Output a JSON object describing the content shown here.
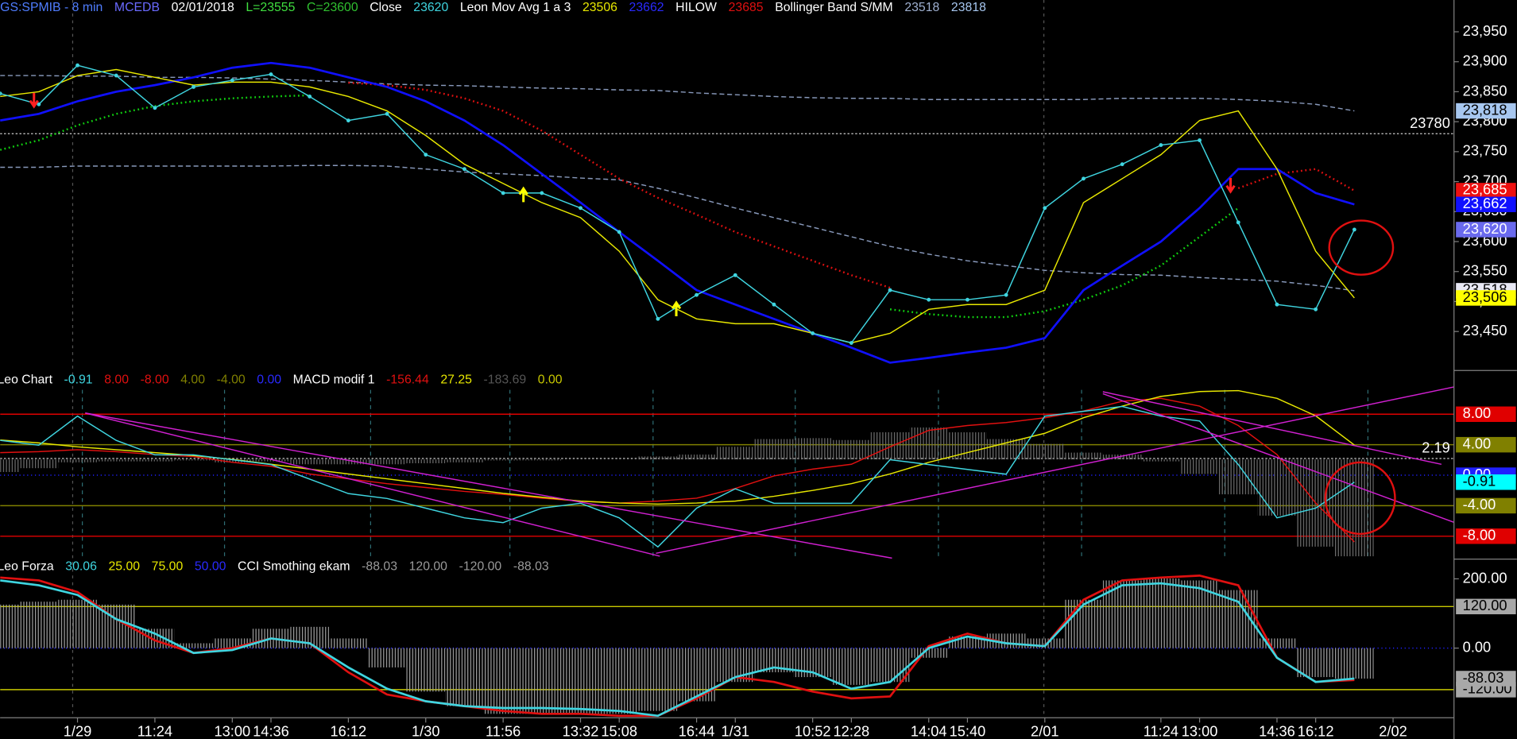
{
  "chart_data": [
    {
      "type": "line",
      "header": [
        {
          "text": "GS:SPMIB - 8 min",
          "color": "#4f7dff"
        },
        {
          "text": "MCEDB",
          "color": "#6a6aff"
        },
        {
          "text": "02/01/2018",
          "color": "#ffffff"
        },
        {
          "text": "L=23555",
          "color": "#40e040"
        },
        {
          "text": "C=23600",
          "color": "#30c030"
        },
        {
          "text": "Close",
          "color": "#ffffff"
        },
        {
          "text": "23620",
          "color": "#3fd5e0"
        },
        {
          "text": "Leon Mov Avg 1 a 3",
          "color": "#ffffff"
        },
        {
          "text": "23506",
          "color": "#e8e800"
        },
        {
          "text": "23662",
          "color": "#2a2aff"
        },
        {
          "text": "HILOW",
          "color": "#ffffff"
        },
        {
          "text": "23685",
          "color": "#e01010"
        },
        {
          "text": "Bollinger Band S/MM",
          "color": "#ffffff"
        },
        {
          "text": "23518",
          "color": "#9fb0d0"
        },
        {
          "text": "23818",
          "color": "#a7c7f0"
        }
      ],
      "ylim": [
        23385,
        24003
      ],
      "yticks": [
        {
          "value": 23450,
          "label": "23,450"
        },
        {
          "value": 23500,
          "label": "23,500"
        },
        {
          "value": 23550,
          "label": "23,550"
        },
        {
          "value": 23600,
          "label": "23,600"
        },
        {
          "value": 23650,
          "label": "23,650"
        },
        {
          "value": 23700,
          "label": "23,700"
        },
        {
          "value": 23750,
          "label": "23,750"
        },
        {
          "value": 23800,
          "label": "23,800"
        },
        {
          "value": 23850,
          "label": "23,850"
        },
        {
          "value": 23900,
          "label": "23,900"
        },
        {
          "value": 23950,
          "label": "23,950"
        }
      ],
      "hlines": [
        23780
      ],
      "series": [
        {
          "color": "#8899bb",
          "style": "dashed",
          "label_color": "#a7c7f0",
          "last_label": "23,818",
          "values": [
            23877,
            23877,
            23876,
            23876,
            23874,
            23874,
            23873,
            23871,
            23869,
            23866,
            23863,
            23861,
            23860,
            23858,
            23856,
            23855,
            23853,
            23852,
            23848,
            23845,
            23842,
            23840,
            23839,
            23839,
            23837,
            23837,
            23837,
            23837,
            23837,
            23839,
            23839,
            23839,
            23837,
            23834,
            23829,
            23818,
            null
          ]
        },
        {
          "color": "#8899bb",
          "style": "dashed",
          "label_color": "#e8e8f4",
          "last_label": "23,518",
          "values": [
            23724,
            23724,
            23726,
            23726,
            23726,
            23726,
            23726,
            23726,
            23727,
            23727,
            23726,
            23721,
            23716,
            23713,
            23710,
            23706,
            23703,
            23689,
            23673,
            23656,
            23640,
            23624,
            23608,
            23592,
            23579,
            23568,
            23560,
            23552,
            23548,
            23545,
            23544,
            23540,
            23537,
            23534,
            23527,
            23518,
            null
          ]
        },
        {
          "name": "HILOW",
          "color": "#e01010",
          "style": "dotted",
          "label_color": "#ee1010",
          "last_label": "23,685",
          "values": [
            null,
            null,
            null,
            null,
            null,
            null,
            null,
            null,
            null,
            23865,
            23861,
            23853,
            23839,
            23818,
            23785,
            23745,
            23705,
            23673,
            23645,
            23616,
            23592,
            23568,
            23544,
            23523,
            null,
            null,
            null,
            null,
            null,
            null,
            null,
            null,
            23689,
            23713,
            23721,
            23685,
            null
          ]
        },
        {
          "color": "#10d010",
          "style": "dotted",
          "values": [
            23753,
            23769,
            23794,
            23813,
            23826,
            23834,
            23839,
            23842,
            23844,
            null,
            null,
            null,
            null,
            null,
            null,
            null,
            null,
            null,
            null,
            null,
            null,
            null,
            null,
            23487,
            23479,
            23474,
            23474,
            23484,
            23503,
            23527,
            23560,
            23608,
            23656,
            null,
            null,
            null,
            null
          ]
        },
        {
          "color": "#1010ff",
          "style": "thick",
          "label_color": "#1010ff",
          "last_label": "23,662",
          "values": [
            23802,
            23813,
            23834,
            23850,
            23861,
            23874,
            23890,
            23898,
            23890,
            23874,
            23858,
            23834,
            23802,
            23761,
            23713,
            23665,
            23616,
            23568,
            23519,
            23495,
            23471,
            23447,
            23423,
            23398,
            23406,
            23415,
            23423,
            23439,
            23519,
            23560,
            23600,
            23656,
            23721,
            23721,
            23681,
            23662,
            null
          ]
        },
        {
          "name": "Leon Mov Avg 1 a 3",
          "color": "#e8e800",
          "style": "solid",
          "label_color": "#ffff00",
          "last_label": "23,506",
          "values": [
            23842,
            23850,
            23877,
            23887,
            23874,
            23861,
            23866,
            23866,
            23858,
            23842,
            23818,
            23777,
            23729,
            23697,
            23665,
            23640,
            23584,
            23503,
            23471,
            23463,
            23463,
            23447,
            23431,
            23447,
            23487,
            23495,
            23495,
            23519,
            23665,
            23705,
            23745,
            23802,
            23818,
            23721,
            23584,
            23506,
            null
          ]
        },
        {
          "name": "Close",
          "color": "#3fd5e0",
          "style": "markers",
          "label_color": "#6a6aee",
          "last_label": "23,620",
          "values": [
            23847,
            23829,
            23894,
            23877,
            23823,
            23858,
            23869,
            23879,
            23842,
            23802,
            23813,
            23745,
            23721,
            23681,
            23681,
            23656,
            23616,
            23471,
            23511,
            23544,
            23495,
            23447,
            23431,
            23519,
            23503,
            23503,
            23511,
            23656,
            23705,
            23729,
            23761,
            23769,
            23632,
            23495,
            23487,
            23620,
            null
          ]
        }
      ]
    },
    {
      "type": "line",
      "header": [
        {
          "text": "Leo Chart",
          "color": "#ffffff"
        },
        {
          "text": "-0.91",
          "color": "#3fd5e0"
        },
        {
          "text": "8.00",
          "color": "#e01010"
        },
        {
          "text": "-8.00",
          "color": "#e01010"
        },
        {
          "text": "4.00",
          "color": "#808000"
        },
        {
          "text": "-4.00",
          "color": "#808000"
        },
        {
          "text": "0.00",
          "color": "#2a2aff"
        },
        {
          "text": "MACD modif 1",
          "color": "#ffffff"
        },
        {
          "text": "-156.44",
          "color": "#e01010"
        },
        {
          "text": "27.25",
          "color": "#e8e800"
        },
        {
          "text": "-183.69",
          "color": "#555555"
        },
        {
          "text": "0.00",
          "color": "#c8c800"
        }
      ],
      "ylim": [
        -11,
        11.2
      ],
      "y2lim": [
        -189,
        132
      ],
      "hlines": [
        2.19
      ],
      "levels": [
        {
          "value": 8,
          "label": "8.00",
          "color": "#e00000",
          "box_color": "#e00000"
        },
        {
          "value": 4,
          "label": "4.00",
          "color": "#808000",
          "box_color": "#808000"
        },
        {
          "value": 0,
          "label": "0.00",
          "color": "#2020ff",
          "box_color": "#2020ff",
          "style": "dotted"
        },
        {
          "value": -4,
          "label": "-4.00",
          "color": "#808000",
          "box_color": "#808000"
        },
        {
          "value": -8,
          "label": "-8.00",
          "color": "#e00000",
          "box_color": "#e00000"
        }
      ],
      "series": [
        {
          "color": "#6e6e6e",
          "type": "bar",
          "axis": "y2",
          "values": [
            -23.9,
            -16.6,
            -5.5,
            -3.7,
            -3.7,
            -1.9,
            -5.5,
            -3.7,
            -9.2,
            -9.2,
            -9.2,
            -7.3,
            -5.6,
            -1.9,
            -1.8,
            0,
            0,
            5.6,
            9.2,
            23.9,
            38.6,
            40.4,
            36.8,
            51.5,
            60.6,
            51.4,
            38.6,
            29.4,
            12.9,
            9.2,
            -3.7,
            -27.6,
            -66.2,
            -106.6,
            -165.4,
            -183.69,
            null
          ]
        },
        {
          "color": "#e01010",
          "style": "solid",
          "axis": "y2",
          "values": [
            12.9,
            14.7,
            18.4,
            14.7,
            9.2,
            5.5,
            -5.5,
            -12.9,
            -27.6,
            -36.8,
            -46.0,
            -53.3,
            -60.7,
            -66.2,
            -73.5,
            -79.0,
            -82.7,
            -79.0,
            -73.5,
            -55.1,
            -31.3,
            -18.4,
            -9.2,
            23.9,
            55.1,
            64.3,
            69.9,
            79.0,
            91.9,
            110.3,
            115.8,
            101.1,
            64.3,
            9.2,
            -82.7,
            -156.44,
            null
          ]
        },
        {
          "color": "#e8e800",
          "style": "solid",
          "axis": "y2",
          "values": [
            36.8,
            31.3,
            23.9,
            18.4,
            12.9,
            7.4,
            0,
            -9.2,
            -18.4,
            -27.6,
            -36.8,
            -46.0,
            -55.1,
            -64.3,
            -71.7,
            -79.0,
            -82.7,
            -84.6,
            -82.7,
            -79.0,
            -69.9,
            -58.8,
            -46.0,
            -27.6,
            -5.5,
            12.9,
            31.3,
            49.6,
            79.0,
            101.1,
            119.5,
            128.7,
            130.5,
            115.8,
            82.7,
            27.25,
            null
          ]
        },
        {
          "color": "#3fd5e0",
          "style": "solid",
          "label_color": "#00ffff",
          "last_label": "-0.91",
          "values": [
            4.57,
            3.94,
            7.75,
            4.57,
            2.67,
            2.67,
            2.03,
            1.4,
            -0.51,
            -2.41,
            -3.05,
            -4.32,
            -5.59,
            -6.22,
            -4.32,
            -3.68,
            -5.59,
            -9.4,
            -4.32,
            -1.78,
            -3.68,
            -3.68,
            -3.68,
            2.03,
            1.4,
            0.76,
            0.13,
            7.75,
            8.38,
            9.02,
            7.75,
            7.11,
            1.4,
            -5.59,
            -4.32,
            -0.91,
            null
          ]
        }
      ]
    },
    {
      "type": "line",
      "header": [
        {
          "text": "Leo Forza",
          "color": "#ffffff"
        },
        {
          "text": "30.06",
          "color": "#3fd5e0"
        },
        {
          "text": "25.00",
          "color": "#e8e800"
        },
        {
          "text": "75.00",
          "color": "#e8e800"
        },
        {
          "text": "50.00",
          "color": "#2a2aff"
        },
        {
          "text": "CCI Smothing ekam",
          "color": "#ffffff"
        },
        {
          "text": "-88.03",
          "color": "#9a9a9a"
        },
        {
          "text": "120.00",
          "color": "#9a9a9a"
        },
        {
          "text": "-120.00",
          "color": "#9a9a9a"
        },
        {
          "text": "-88.03",
          "color": "#9a9a9a"
        }
      ],
      "ylim": [
        -201,
        257
      ],
      "yticks": [
        {
          "value": 0,
          "label": "0.00"
        },
        {
          "value": 200,
          "label": "200.00"
        }
      ],
      "levels": [
        {
          "value": 120,
          "label": "120.00",
          "color": "#c8c800",
          "box_color": "#a8a8a8"
        },
        {
          "value": 0,
          "color": "#2020ff",
          "style": "dotted"
        },
        {
          "value": -120,
          "label": "-120.00",
          "color": "#c8c800",
          "box_color": "#a8a8a8"
        }
      ],
      "categories": [
        null,
        null,
        "1/29",
        null,
        "11:24",
        null,
        "13:00",
        "14:36",
        null,
        "16:12",
        null,
        "1/30",
        null,
        "11:56",
        null,
        "13:32",
        "15:08",
        null,
        "16:44",
        "1/31",
        null,
        "10:52",
        "12:28",
        null,
        "14:04",
        "15:40",
        null,
        "2/01",
        null,
        null,
        "11:24",
        "13:00",
        null,
        "14:36",
        "16:12",
        null,
        "2/02"
      ],
      "series": [
        {
          "color": "#a0a0a0",
          "type": "bar",
          "label_color": "#a8a8a8",
          "last_label": "-88.03",
          "values": [
            125.6,
            134.0,
            139.6,
            125.6,
            55.8,
            14.0,
            27.9,
            55.8,
            61.4,
            27.9,
            -55.8,
            -125.6,
            -167.5,
            -189.8,
            -189.8,
            -189.8,
            -189.8,
            -181.4,
            -153.5,
            -97.7,
            -69.8,
            -83.7,
            -106.1,
            -97.7,
            -27.9,
            33.5,
            41.9,
            27.9,
            139.6,
            195.4,
            201.0,
            195.4,
            167.5,
            27.9,
            -83.7,
            -88.03,
            null
          ]
        },
        {
          "color": "#e01010",
          "style": "thick",
          "values": [
            203.7,
            195.4,
            161.9,
            83.7,
            22.3,
            -14.0,
            0,
            27.9,
            14.0,
            -69.8,
            -134.0,
            -153.5,
            -167.5,
            -181.4,
            -189.8,
            -189.8,
            -195.4,
            -195.4,
            -145.1,
            -83.7,
            -97.7,
            -125.6,
            -145.1,
            -139.6,
            5.6,
            41.9,
            14.0,
            5.6,
            139.6,
            195.4,
            203.7,
            209.3,
            181.4,
            -27.9,
            -97.7,
            -92.1,
            null
          ]
        },
        {
          "color": "#3fd5e0",
          "style": "thick",
          "values": [
            195.4,
            181.4,
            153.5,
            83.7,
            41.9,
            -14.0,
            -5.6,
            27.9,
            14.0,
            -55.8,
            -117.2,
            -153.5,
            -167.5,
            -173.0,
            -173.0,
            -175.8,
            -181.4,
            -195.4,
            -139.6,
            -83.7,
            -55.8,
            -69.8,
            -117.2,
            -97.7,
            0,
            33.5,
            14.0,
            5.6,
            125.6,
            181.4,
            187.0,
            173.0,
            134.0,
            -27.9,
            -97.7,
            -88.03,
            null
          ]
        }
      ]
    }
  ]
}
